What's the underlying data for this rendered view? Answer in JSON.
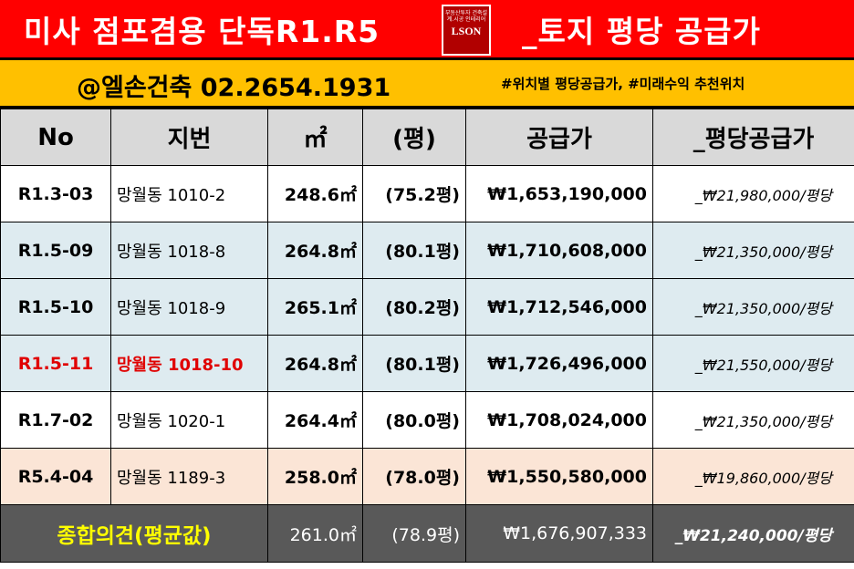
{
  "header": {
    "title_left": "미사 점포겸용 단독R1.R5",
    "title_right": "_토지 평당 공급가",
    "logo": {
      "top_text": "부동산투자 건축설계.시공 인테리어",
      "word": "LSON"
    }
  },
  "subheader": {
    "contact": "@엘손건축 02.2654.1931",
    "hashtags": "#위치별 평당공급가, #미래수익 추천위치"
  },
  "table": {
    "columns": [
      "No",
      "지번",
      "㎡",
      "(평)",
      "공급가",
      "_평당공급가"
    ],
    "rows": [
      {
        "no": "R1.3-03",
        "address": "망월동 1010-2",
        "sqm": "248.6㎡",
        "pyeong": "(75.2평)",
        "price": "₩1,653,190,000",
        "price_per_pyeong": "_₩21,980,000/평당"
      },
      {
        "no": "R1.5-09",
        "address": "망월동 1018-8",
        "sqm": "264.8㎡",
        "pyeong": "(80.1평)",
        "price": "₩1,710,608,000",
        "price_per_pyeong": "_₩21,350,000/평당"
      },
      {
        "no": "R1.5-10",
        "address": "망월동 1018-9",
        "sqm": "265.1㎡",
        "pyeong": "(80.2평)",
        "price": "₩1,712,546,000",
        "price_per_pyeong": "_₩21,350,000/평당"
      },
      {
        "no": "R1.5-11",
        "address": "망월동 1018-10",
        "sqm": "264.8㎡",
        "pyeong": "(80.1평)",
        "price": "₩1,726,496,000",
        "price_per_pyeong": "_₩21,550,000/평당"
      },
      {
        "no": "R1.7-02",
        "address": "망월동 1020-1",
        "sqm": "264.4㎡",
        "pyeong": "(80.0평)",
        "price": "₩1,708,024,000",
        "price_per_pyeong": "_₩21,350,000/평당"
      },
      {
        "no": "R5.4-04",
        "address": "망월동 1189-3",
        "sqm": "258.0㎡",
        "pyeong": "(78.0평)",
        "price": "₩1,550,580,000",
        "price_per_pyeong": "_₩19,860,000/평당"
      }
    ],
    "summary": {
      "label": "종합의견(평균값)",
      "sqm": "261.0㎡",
      "pyeong": "(78.9평)",
      "price": "₩1,676,907,333",
      "price_per_pyeong": "_₩21,240,000/평당"
    }
  },
  "colors": {
    "title_bg": "#ff0000",
    "contact_bg": "#ffc000",
    "header_bg": "#d9d9d9",
    "row_blue": "#deebf0",
    "row_pink": "#fbe5d6",
    "summary_bg": "#595959",
    "highlight_text": "#e00000",
    "summary_label": "#ffff00"
  }
}
